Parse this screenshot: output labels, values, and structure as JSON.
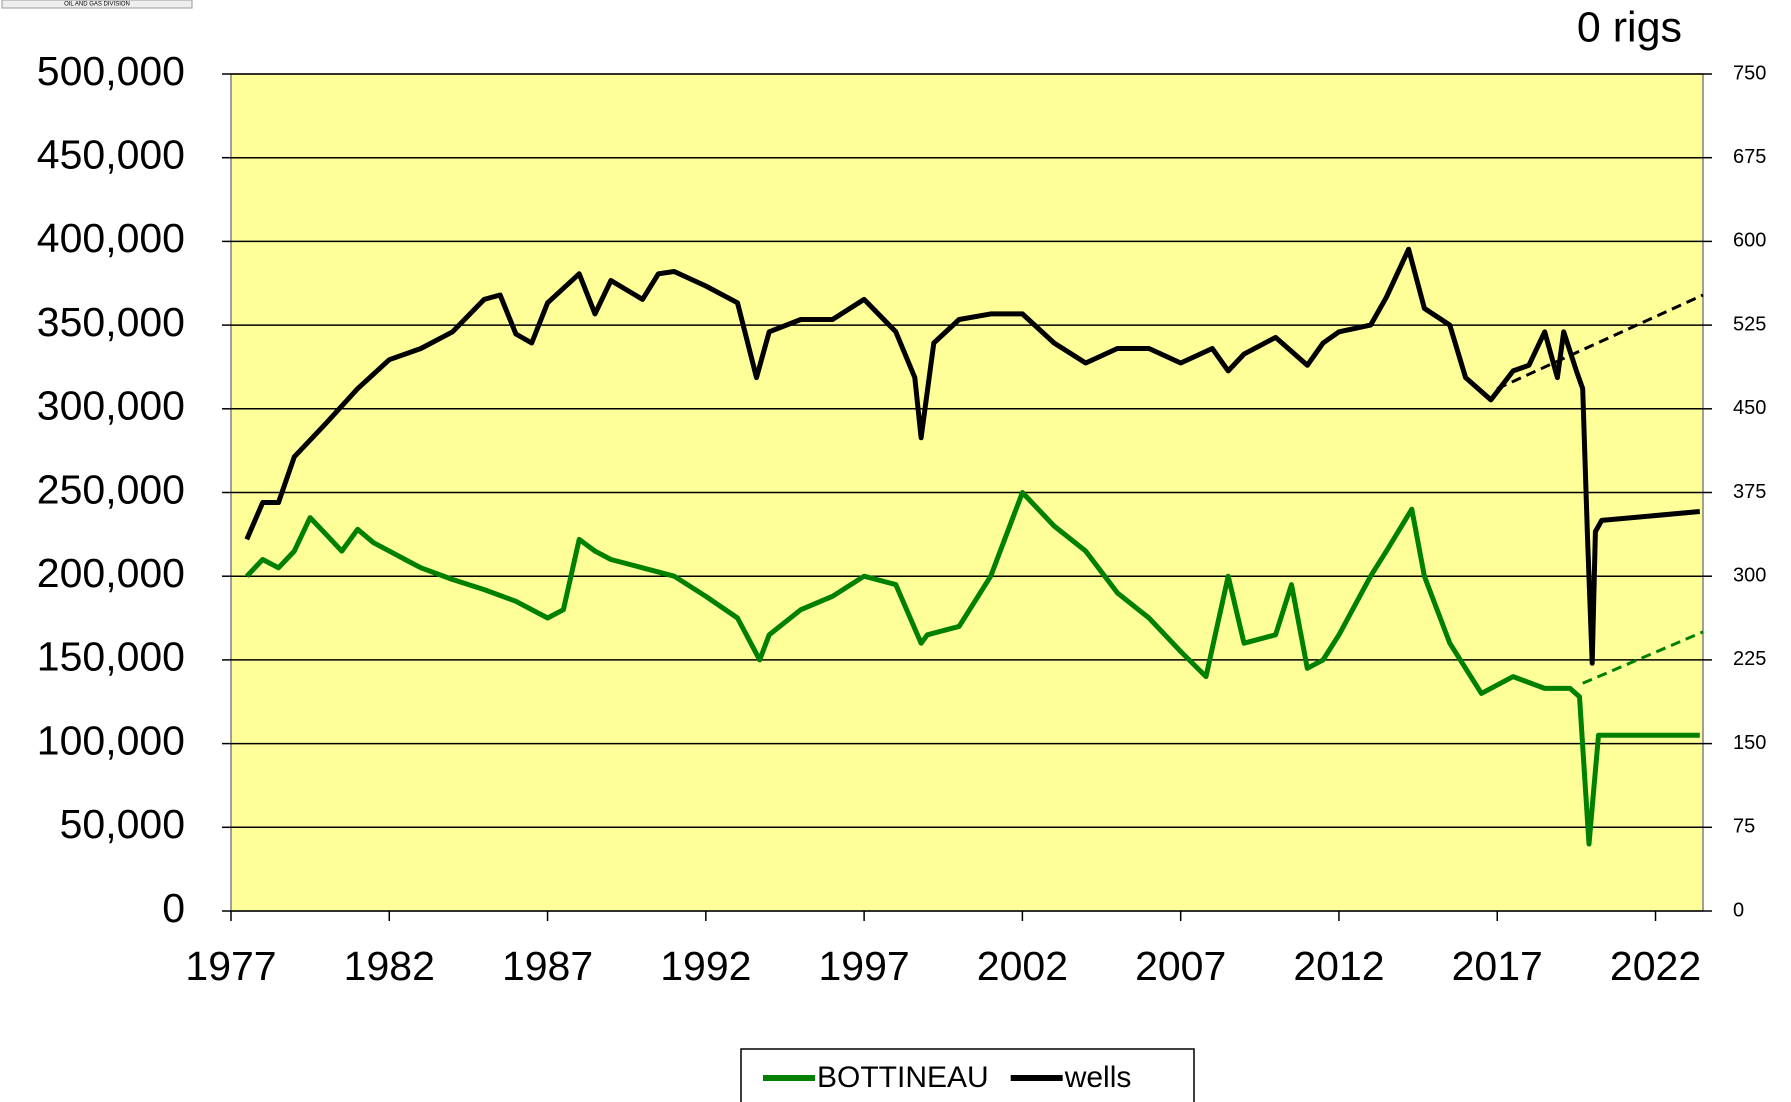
{
  "chart_data": {
    "type": "line",
    "logo_text": "OIL AND GAS DIVISION",
    "annotation": "0 rigs",
    "xlim": [
      1977,
      2023.5
    ],
    "xticks": [
      1977,
      1982,
      1987,
      1992,
      1997,
      2002,
      2007,
      2012,
      2017,
      2022
    ],
    "ylim": [
      0,
      500000
    ],
    "yticks": [
      0,
      {
        "value": 50000,
        "label": "50,000"
      },
      {
        "value": 100000,
        "label": "100,000"
      },
      {
        "value": 150000,
        "label": "150,000"
      },
      {
        "value": 200000,
        "label": "200,000"
      },
      {
        "value": 250000,
        "label": "250,000"
      },
      {
        "value": 300000,
        "label": "300,000"
      },
      {
        "value": 350000,
        "label": "350,000"
      },
      {
        "value": 400000,
        "label": "400,000"
      },
      {
        "value": 450000,
        "label": "450,000"
      },
      {
        "value": 500000,
        "label": "500,000"
      }
    ],
    "y2lim": [
      0,
      750
    ],
    "y2ticks": [
      0,
      75,
      150,
      225,
      300,
      375,
      450,
      525,
      600,
      675,
      750
    ],
    "grid": true,
    "plot_background": "#ffff99",
    "legend_position": "bottom",
    "series": [
      {
        "name": "BOTTINEAU",
        "color": "#008000",
        "axis": "y",
        "x": [
          1977.5,
          1978,
          1978.5,
          1979,
          1979.5,
          1980,
          1980.5,
          1981,
          1981.5,
          1982,
          1982.5,
          1983,
          1984,
          1985,
          1986,
          1987,
          1987.5,
          1988,
          1988.5,
          1989,
          1990,
          1991,
          1992,
          1993,
          1993.7,
          1994,
          1995,
          1996,
          1997,
          1998,
          1998.8,
          1999,
          2000,
          2001,
          2002,
          2003,
          2004,
          2005,
          2006,
          2007,
          2007.8,
          2008.5,
          2009,
          2010,
          2010.5,
          2011,
          2011.5,
          2012,
          2013,
          2013.5,
          2014.3,
          2014.7,
          2015.5,
          2016.5,
          2017.5,
          2018.5,
          2019.3,
          2019.6,
          2019.9,
          2020.2,
          2023.4
        ],
        "values": [
          200000,
          210000,
          205000,
          215000,
          235000,
          225000,
          215000,
          228000,
          220000,
          215000,
          210000,
          205000,
          198000,
          192000,
          185000,
          175000,
          180000,
          222000,
          215000,
          210000,
          205000,
          200000,
          188000,
          175000,
          150000,
          165000,
          180000,
          188000,
          200000,
          195000,
          160000,
          165000,
          170000,
          200000,
          250000,
          230000,
          215000,
          190000,
          175000,
          155000,
          140000,
          200000,
          160000,
          165000,
          195000,
          145000,
          150000,
          165000,
          200000,
          215000,
          240000,
          200000,
          160000,
          130000,
          140000,
          133000,
          133000,
          128000,
          40000,
          105000,
          105000
        ]
      },
      {
        "name": "wells",
        "color": "#000000",
        "axis": "y2",
        "x": [
          1977.5,
          1978,
          1978.5,
          1979,
          1980,
          1981,
          1982,
          1983,
          1984,
          1985,
          1985.5,
          1986,
          1986.5,
          1987,
          1988,
          1988.5,
          1989,
          1990,
          1990.5,
          1991,
          1992,
          1993,
          1993.6,
          1994,
          1995,
          1996,
          1997,
          1998,
          1998.6,
          1998.8,
          1999.2,
          2000,
          2001,
          2002,
          2003,
          2004,
          2005,
          2006,
          2007,
          2008,
          2008.5,
          2009,
          2010,
          2011,
          2011.5,
          2012,
          2013,
          2013.5,
          2014.2,
          2014.7,
          2015.5,
          2016,
          2016.8,
          2017.5,
          2018,
          2018.5,
          2018.9,
          2019.1,
          2019.5,
          2019.7,
          2019.85,
          2020,
          2020.1,
          2020.3,
          2023.4
        ],
        "values": [
          333,
          366,
          366,
          407,
          437,
          468,
          494,
          504,
          519,
          548,
          552,
          517,
          509,
          545,
          571,
          535,
          565,
          548,
          571,
          573,
          560,
          545,
          478,
          519,
          530,
          530,
          548,
          519,
          478,
          424,
          509,
          530,
          535,
          535,
          509,
          491,
          504,
          504,
          491,
          504,
          484,
          499,
          514,
          489,
          509,
          519,
          525,
          550,
          593,
          540,
          525,
          478,
          458,
          484,
          489,
          519,
          478,
          519,
          484,
          468,
          335,
          222,
          340,
          350,
          358
        ]
      }
    ],
    "trend_lines": [
      {
        "color": "#008000",
        "axis": "y",
        "x": [
          2019.7,
          2023.5
        ],
        "values": [
          136000,
          166700
        ]
      },
      {
        "color": "#000000",
        "axis": "y2",
        "x": [
          2017,
          2023.5
        ],
        "values": [
          468,
          552
        ]
      }
    ]
  }
}
